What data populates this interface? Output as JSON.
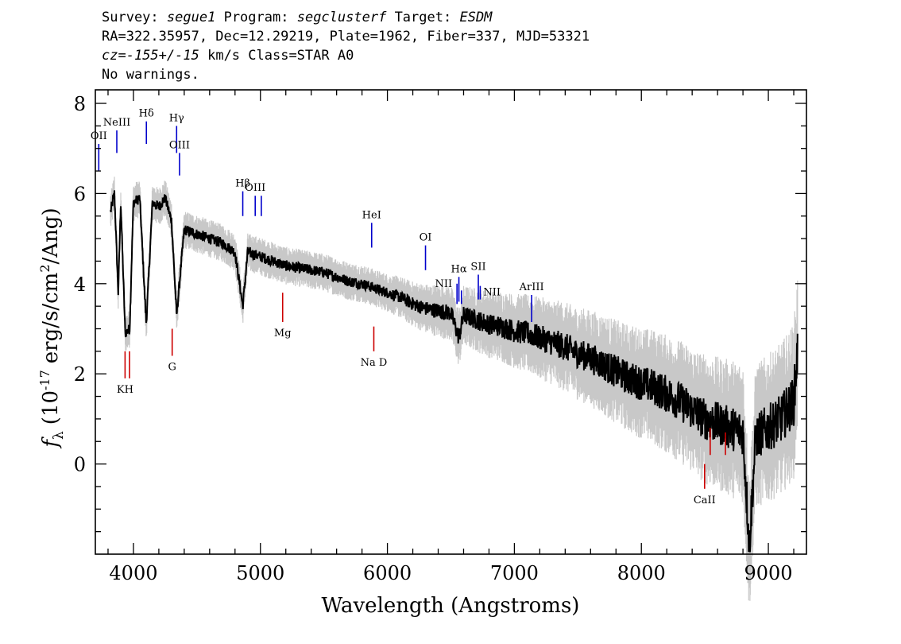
{
  "header": {
    "survey_key": "Survey:",
    "survey": "segue1",
    "program_key": "Program:",
    "program": "segclusterf",
    "target_key": "Target:",
    "target": "ESDM",
    "line2": "RA=322.35957, Dec=12.29219, Plate=1962, Fiber=337, MJD=53321",
    "cz_key": "cz=",
    "cz_value": "-155+/-15",
    "cz_rest": "km/s Class=STAR A0",
    "warnings": "No warnings."
  },
  "chart_data": {
    "type": "line",
    "xlabel": "Wavelength (Angstroms)",
    "ylabel_prefix": "f",
    "ylabel_sub": "λ",
    "ylabel_main": "(10",
    "ylabel_exp": "-17",
    "ylabel_mid": "erg/s/cm",
    "ylabel_sq": "2",
    "ylabel_end": "/Ang)",
    "xlim": [
      3700,
      9300
    ],
    "ylim": [
      -2,
      8.3
    ],
    "x_ticks": [
      4000,
      5000,
      6000,
      7000,
      8000,
      9000
    ],
    "x_tick_labels": [
      "4000",
      "5000",
      "6000",
      "7000",
      "8000",
      "9000"
    ],
    "y_ticks": [
      0,
      2,
      4,
      6,
      8
    ],
    "y_tick_labels": [
      "0",
      "2",
      "4",
      "6",
      "8"
    ],
    "series": [
      {
        "color": "#000000",
        "x": [
          3820,
          3850,
          3880,
          3900,
          3935,
          3970,
          4000,
          4050,
          4101,
          4150,
          4200,
          4250,
          4300,
          4340,
          4400,
          4500,
          4600,
          4700,
          4800,
          4861,
          4900,
          5000,
          5100,
          5200,
          5300,
          5400,
          5500,
          5600,
          5700,
          5800,
          5900,
          6000,
          6100,
          6200,
          6300,
          6400,
          6500,
          6563,
          6600,
          6700,
          6800,
          6900,
          7000,
          7100,
          7200,
          7300,
          7400,
          7500,
          7600,
          7700,
          7800,
          7900,
          8000,
          8100,
          8200,
          8300,
          8400,
          8500,
          8600,
          8700,
          8800,
          8850,
          8900,
          9000,
          9100,
          9200,
          9230
        ],
        "y": [
          5.6,
          6.0,
          3.8,
          5.8,
          2.9,
          3.0,
          5.8,
          5.9,
          3.1,
          5.8,
          5.7,
          5.9,
          5.4,
          3.3,
          5.2,
          5.1,
          5.0,
          4.9,
          4.7,
          3.5,
          4.7,
          4.6,
          4.5,
          4.4,
          4.35,
          4.3,
          4.25,
          4.15,
          4.05,
          4.0,
          3.9,
          3.8,
          3.7,
          3.55,
          3.45,
          3.4,
          3.35,
          2.8,
          3.3,
          3.2,
          3.1,
          3.05,
          2.95,
          2.9,
          2.8,
          2.7,
          2.6,
          2.45,
          2.35,
          2.2,
          2.05,
          1.9,
          1.8,
          1.7,
          1.55,
          1.4,
          1.2,
          1.0,
          0.9,
          0.8,
          0.7,
          -1.8,
          0.6,
          0.8,
          1.0,
          1.4,
          2.5
        ]
      }
    ],
    "reference_lines": [
      {
        "label": "OII",
        "x": 3727,
        "y1": 6.5,
        "y2": 7.1,
        "color": "#0000cc",
        "pos": "above"
      },
      {
        "label": "NeIII",
        "x": 3869,
        "y1": 6.9,
        "y2": 7.4,
        "color": "#0000cc",
        "pos": "above"
      },
      {
        "label": "Hδ",
        "x": 4102,
        "y1": 7.1,
        "y2": 7.6,
        "color": "#0000cc",
        "pos": "above"
      },
      {
        "label": "Hγ",
        "x": 4340,
        "y1": 6.9,
        "y2": 7.5,
        "color": "#0000cc",
        "pos": "above"
      },
      {
        "label": "OIII",
        "x": 4363,
        "y1": 6.4,
        "y2": 6.9,
        "color": "#0000cc",
        "pos": "above"
      },
      {
        "label": "Hβ",
        "x": 4861,
        "y1": 5.5,
        "y2": 6.05,
        "color": "#0000cc",
        "pos": "above"
      },
      {
        "label": "OIII",
        "x": 4959,
        "y1": 5.5,
        "y2": 5.95,
        "color": "#0000cc",
        "pos": "above"
      },
      {
        "label": "",
        "x": 5007,
        "y1": 5.5,
        "y2": 5.95,
        "color": "#0000cc",
        "pos": "above"
      },
      {
        "label": "HeI",
        "x": 5876,
        "y1": 4.8,
        "y2": 5.35,
        "color": "#0000cc",
        "pos": "above"
      },
      {
        "label": "OI",
        "x": 6300,
        "y1": 4.3,
        "y2": 4.85,
        "color": "#0000cc",
        "pos": "above"
      },
      {
        "label": "NII",
        "x": 6548,
        "y1": 3.55,
        "y2": 4.0,
        "color": "#0000cc",
        "pos": "left"
      },
      {
        "label": "Hα",
        "x": 6563,
        "y1": 3.6,
        "y2": 4.15,
        "color": "#0000cc",
        "pos": "above"
      },
      {
        "label": "",
        "x": 6583,
        "y1": 3.55,
        "y2": 3.85,
        "color": "#0000cc",
        "pos": "above"
      },
      {
        "label": "SII",
        "x": 6716,
        "y1": 3.65,
        "y2": 4.2,
        "color": "#0000cc",
        "pos": "above"
      },
      {
        "label": "NII",
        "x": 6731,
        "y1": 3.65,
        "y2": 3.95,
        "color": "#0000cc",
        "pos": "right"
      },
      {
        "label": "ArIII",
        "x": 7136,
        "y1": 3.15,
        "y2": 3.75,
        "color": "#0000cc",
        "pos": "above"
      },
      {
        "label": "KH",
        "x": 3934,
        "y1": 1.9,
        "y2": 2.5,
        "color": "#cc0000",
        "pos": "below"
      },
      {
        "label": "",
        "x": 3969,
        "y1": 1.9,
        "y2": 2.5,
        "color": "#cc0000",
        "pos": "below"
      },
      {
        "label": "G",
        "x": 4305,
        "y1": 2.4,
        "y2": 3.0,
        "color": "#cc0000",
        "pos": "below"
      },
      {
        "label": "Mg",
        "x": 5175,
        "y1": 3.15,
        "y2": 3.8,
        "color": "#cc0000",
        "pos": "below"
      },
      {
        "label": "Na D",
        "x": 5893,
        "y1": 2.5,
        "y2": 3.05,
        "color": "#cc0000",
        "pos": "below"
      },
      {
        "label": "CaII",
        "x": 8498,
        "y1": -0.55,
        "y2": 0.0,
        "color": "#cc0000",
        "pos": "below"
      },
      {
        "label": "",
        "x": 8542,
        "y1": 0.2,
        "y2": 0.8,
        "color": "#cc0000",
        "pos": "below"
      },
      {
        "label": "",
        "x": 8662,
        "y1": 0.2,
        "y2": 0.7,
        "color": "#cc0000",
        "pos": "below"
      }
    ]
  }
}
